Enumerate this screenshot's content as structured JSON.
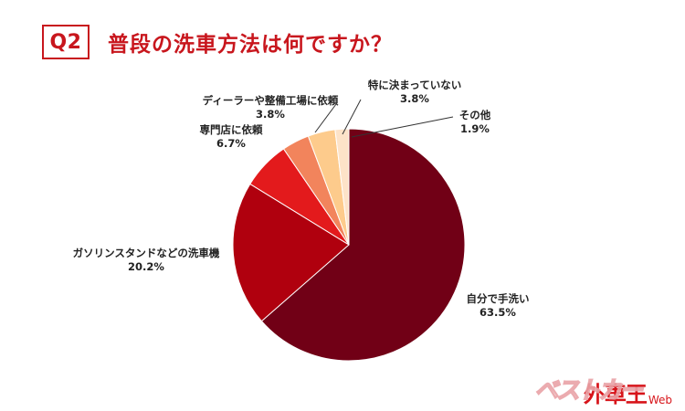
{
  "header": {
    "badge": "Q2",
    "title": "普段の洗車方法は何ですか？"
  },
  "logo": {
    "stripe": "ベストカー",
    "main": "外車王",
    "web": "Web"
  },
  "chart_data": {
    "type": "pie",
    "title": "普段の洗車方法は何ですか？",
    "slices": [
      {
        "label": "自分で手洗い",
        "value": 63.5,
        "display": "63.5%",
        "color": "#710016"
      },
      {
        "label": "ガソリンスタンドなどの洗車機",
        "value": 20.2,
        "display": "20.2%",
        "color": "#b0000e"
      },
      {
        "label": "専門店に依頼",
        "value": 6.7,
        "display": "6.7%",
        "color": "#e31a1c"
      },
      {
        "label": "ディーラーや整備工場に依頼",
        "value": 3.8,
        "display": "3.8%",
        "color": "#f2845c"
      },
      {
        "label": "特に決まっていない",
        "value": 3.8,
        "display": "3.8%",
        "color": "#fdcb8c"
      },
      {
        "label": "その他",
        "value": 1.9,
        "display": "1.9%",
        "color": "#fde3c8"
      }
    ],
    "legend": "none"
  }
}
